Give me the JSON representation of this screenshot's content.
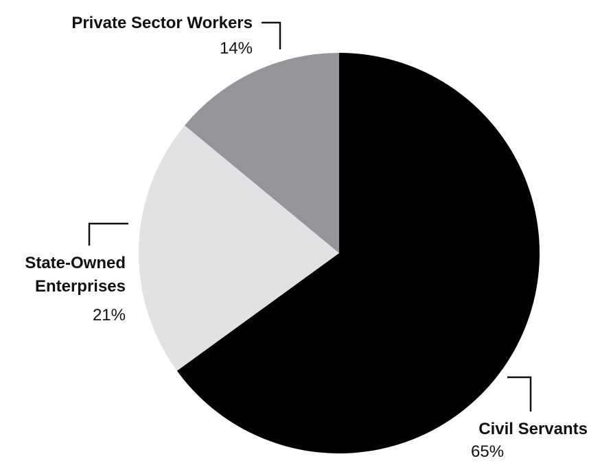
{
  "chart_data": {
    "type": "pie",
    "title": "",
    "slices": [
      {
        "label": "Civil Servants",
        "value": 65,
        "value_label": "65%",
        "color": "#000000"
      },
      {
        "label": "State-Owned Enterprises",
        "label_lines": [
          "State-Owned",
          "Enterprises"
        ],
        "value": 21,
        "value_label": "21%",
        "color": "#e1e2e4"
      },
      {
        "label": "Private Sector Workers",
        "value": 14,
        "value_label": "14%",
        "color": "#939598"
      }
    ],
    "start": "12 o'clock",
    "direction": "clockwise",
    "legend": "none"
  }
}
